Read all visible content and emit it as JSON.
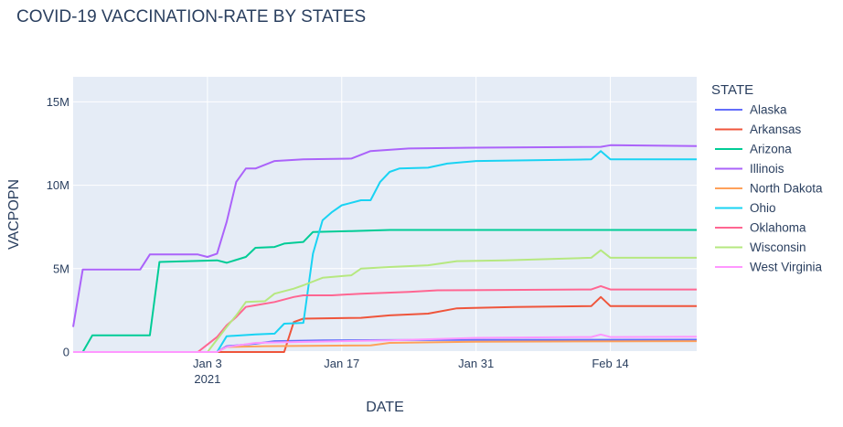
{
  "chart_data": {
    "type": "line",
    "title": "COVID-19 VACCINATION-RATE BY STATES",
    "xlabel": "DATE",
    "ylabel": "VACPOPN",
    "x_ticks": [
      {
        "date": "2021-01-03",
        "label": "Jan 3",
        "sublabel": "2021"
      },
      {
        "date": "2021-01-17",
        "label": "Jan 17",
        "sublabel": ""
      },
      {
        "date": "2021-01-31",
        "label": "Jan 31",
        "sublabel": ""
      },
      {
        "date": "2021-02-14",
        "label": "Feb 14",
        "sublabel": ""
      }
    ],
    "xlim": [
      "2020-12-20",
      "2021-02-23"
    ],
    "y_ticks": [
      {
        "value": 0,
        "label": "0"
      },
      {
        "value": 5000000,
        "label": "5M"
      },
      {
        "value": 10000000,
        "label": "10M"
      },
      {
        "value": 15000000,
        "label": "15M"
      }
    ],
    "ylim": [
      0,
      16500000
    ],
    "grid": true,
    "legend_title": "STATE",
    "legend_position": "right",
    "series": [
      {
        "name": "Alaska",
        "color": "#636efa",
        "points": [
          [
            "2020-12-20",
            0
          ],
          [
            "2021-01-04",
            0
          ],
          [
            "2021-01-05",
            350000
          ],
          [
            "2021-01-08",
            500000
          ],
          [
            "2021-01-10",
            650000
          ],
          [
            "2021-01-15",
            700000
          ],
          [
            "2021-01-22",
            720000
          ],
          [
            "2021-01-31",
            730000
          ],
          [
            "2021-02-12",
            735000
          ],
          [
            "2021-02-23",
            740000
          ]
        ]
      },
      {
        "name": "Arkansas",
        "color": "#ef553b",
        "points": [
          [
            "2020-12-20",
            0
          ],
          [
            "2021-01-11",
            0
          ],
          [
            "2021-01-12",
            1800000
          ],
          [
            "2021-01-13",
            2000000
          ],
          [
            "2021-01-19",
            2050000
          ],
          [
            "2021-01-22",
            2200000
          ],
          [
            "2021-01-26",
            2300000
          ],
          [
            "2021-01-29",
            2620000
          ],
          [
            "2021-02-04",
            2700000
          ],
          [
            "2021-02-12",
            2750000
          ],
          [
            "2021-02-13",
            3300000
          ],
          [
            "2021-02-14",
            2750000
          ],
          [
            "2021-02-23",
            2750000
          ]
        ]
      },
      {
        "name": "Arizona",
        "color": "#00cc96",
        "points": [
          [
            "2020-12-20",
            0
          ],
          [
            "2020-12-21",
            0
          ],
          [
            "2020-12-22",
            1000000
          ],
          [
            "2020-12-28",
            1000000
          ],
          [
            "2020-12-29",
            5400000
          ],
          [
            "2021-01-04",
            5500000
          ],
          [
            "2021-01-05",
            5350000
          ],
          [
            "2021-01-07",
            5700000
          ],
          [
            "2021-01-08",
            6250000
          ],
          [
            "2021-01-10",
            6300000
          ],
          [
            "2021-01-11",
            6500000
          ],
          [
            "2021-01-13",
            6600000
          ],
          [
            "2021-01-14",
            7200000
          ],
          [
            "2021-01-18",
            7250000
          ],
          [
            "2021-01-22",
            7320000
          ],
          [
            "2021-02-23",
            7320000
          ]
        ]
      },
      {
        "name": "Illinois",
        "color": "#ab63fa",
        "points": [
          [
            "2020-12-20",
            1500000
          ],
          [
            "2020-12-21",
            4950000
          ],
          [
            "2020-12-27",
            4950000
          ],
          [
            "2020-12-28",
            5850000
          ],
          [
            "2021-01-02",
            5850000
          ],
          [
            "2021-01-03",
            5700000
          ],
          [
            "2021-01-04",
            5900000
          ],
          [
            "2021-01-05",
            7800000
          ],
          [
            "2021-01-06",
            10200000
          ],
          [
            "2021-01-07",
            11000000
          ],
          [
            "2021-01-08",
            11000000
          ],
          [
            "2021-01-10",
            11450000
          ],
          [
            "2021-01-13",
            11550000
          ],
          [
            "2021-01-18",
            11600000
          ],
          [
            "2021-01-20",
            12050000
          ],
          [
            "2021-01-24",
            12200000
          ],
          [
            "2021-01-31",
            12250000
          ],
          [
            "2021-02-13",
            12300000
          ],
          [
            "2021-02-14",
            12400000
          ],
          [
            "2021-02-23",
            12350000
          ]
        ]
      },
      {
        "name": "North Dakota",
        "color": "#ffa15a",
        "points": [
          [
            "2020-12-20",
            0
          ],
          [
            "2021-01-04",
            0
          ],
          [
            "2021-01-05",
            300000
          ],
          [
            "2021-01-09",
            350000
          ],
          [
            "2021-01-20",
            400000
          ],
          [
            "2021-01-22",
            550000
          ],
          [
            "2021-01-31",
            620000
          ],
          [
            "2021-02-23",
            650000
          ]
        ]
      },
      {
        "name": "Ohio",
        "color": "#19d3f3",
        "points": [
          [
            "2020-12-20",
            0
          ],
          [
            "2021-01-04",
            0
          ],
          [
            "2021-01-05",
            950000
          ],
          [
            "2021-01-08",
            1050000
          ],
          [
            "2021-01-10",
            1100000
          ],
          [
            "2021-01-11",
            1700000
          ],
          [
            "2021-01-13",
            1750000
          ],
          [
            "2021-01-14",
            5900000
          ],
          [
            "2021-01-15",
            7900000
          ],
          [
            "2021-01-16",
            8400000
          ],
          [
            "2021-01-17",
            8800000
          ],
          [
            "2021-01-19",
            9100000
          ],
          [
            "2021-01-20",
            9100000
          ],
          [
            "2021-01-21",
            10200000
          ],
          [
            "2021-01-22",
            10800000
          ],
          [
            "2021-01-23",
            11000000
          ],
          [
            "2021-01-26",
            11050000
          ],
          [
            "2021-01-28",
            11300000
          ],
          [
            "2021-01-31",
            11450000
          ],
          [
            "2021-02-12",
            11550000
          ],
          [
            "2021-02-13",
            12050000
          ],
          [
            "2021-02-14",
            11550000
          ],
          [
            "2021-02-23",
            11550000
          ]
        ]
      },
      {
        "name": "Oklahoma",
        "color": "#ff6692",
        "points": [
          [
            "2020-12-20",
            0
          ],
          [
            "2021-01-02",
            0
          ],
          [
            "2021-01-04",
            900000
          ],
          [
            "2021-01-05",
            1600000
          ],
          [
            "2021-01-06",
            2100000
          ],
          [
            "2021-01-07",
            2700000
          ],
          [
            "2021-01-08",
            2800000
          ],
          [
            "2021-01-10",
            3000000
          ],
          [
            "2021-01-12",
            3300000
          ],
          [
            "2021-01-13",
            3400000
          ],
          [
            "2021-01-16",
            3400000
          ],
          [
            "2021-01-19",
            3500000
          ],
          [
            "2021-01-24",
            3600000
          ],
          [
            "2021-01-27",
            3700000
          ],
          [
            "2021-02-12",
            3750000
          ],
          [
            "2021-02-13",
            3950000
          ],
          [
            "2021-02-14",
            3750000
          ],
          [
            "2021-02-23",
            3750000
          ]
        ]
      },
      {
        "name": "Wisconsin",
        "color": "#b6e880",
        "points": [
          [
            "2020-12-20",
            0
          ],
          [
            "2021-01-03",
            0
          ],
          [
            "2021-01-05",
            1500000
          ],
          [
            "2021-01-06",
            2200000
          ],
          [
            "2021-01-07",
            3000000
          ],
          [
            "2021-01-09",
            3050000
          ],
          [
            "2021-01-10",
            3500000
          ],
          [
            "2021-01-12",
            3800000
          ],
          [
            "2021-01-13",
            4000000
          ],
          [
            "2021-01-15",
            4450000
          ],
          [
            "2021-01-18",
            4600000
          ],
          [
            "2021-01-19",
            5000000
          ],
          [
            "2021-01-22",
            5100000
          ],
          [
            "2021-01-26",
            5200000
          ],
          [
            "2021-01-29",
            5450000
          ],
          [
            "2021-02-03",
            5500000
          ],
          [
            "2021-02-12",
            5650000
          ],
          [
            "2021-02-13",
            6100000
          ],
          [
            "2021-02-14",
            5650000
          ],
          [
            "2021-02-23",
            5650000
          ]
        ]
      },
      {
        "name": "West Virginia",
        "color": "#ff97ff",
        "points": [
          [
            "2020-12-20",
            0
          ],
          [
            "2021-01-04",
            0
          ],
          [
            "2021-01-05",
            300000
          ],
          [
            "2021-01-08",
            550000
          ],
          [
            "2021-01-12",
            600000
          ],
          [
            "2021-01-22",
            700000
          ],
          [
            "2021-01-31",
            850000
          ],
          [
            "2021-02-12",
            900000
          ],
          [
            "2021-02-13",
            1050000
          ],
          [
            "2021-02-14",
            900000
          ],
          [
            "2021-02-23",
            920000
          ]
        ]
      }
    ]
  }
}
